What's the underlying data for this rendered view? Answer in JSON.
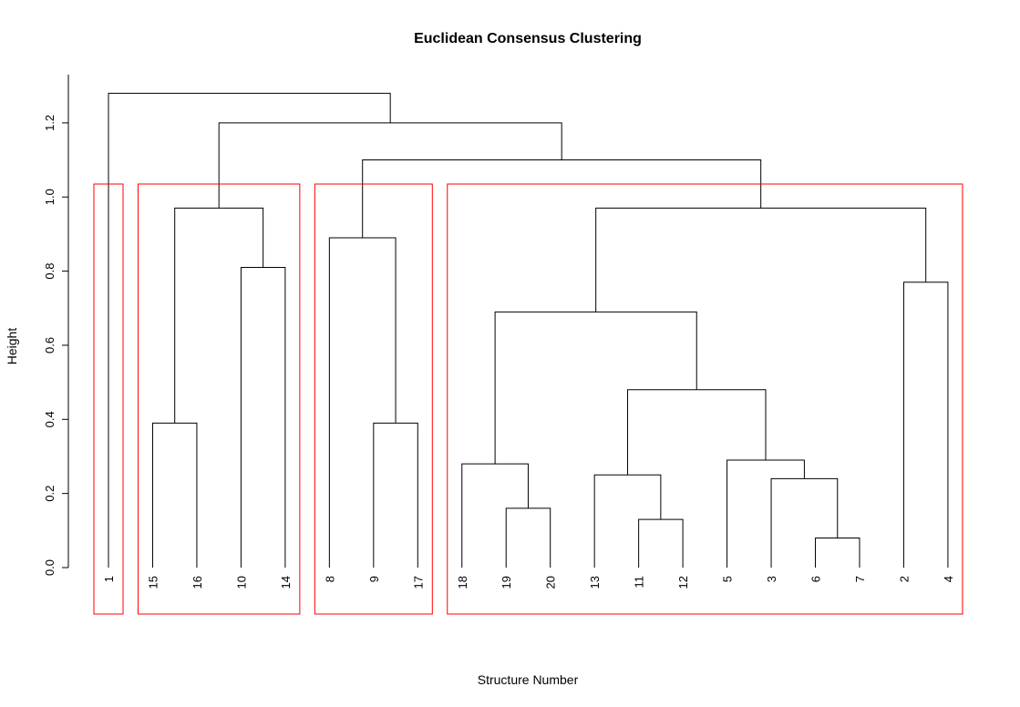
{
  "chart_data": {
    "type": "dendrogram",
    "title": "Euclidean Consensus Clustering",
    "x_label": "Structure Number",
    "y_label": "Height",
    "ylim": [
      0,
      1.33
    ],
    "yticks": [
      {
        "value": 0,
        "label": "0.0"
      },
      0.2,
      0.4,
      0.6,
      0.8,
      {
        "value": 1,
        "label": "1.0"
      },
      1.2
    ],
    "line_color": "#000000",
    "rect_clusters": 4,
    "rect_color": "#ff0000",
    "tree": {
      "height": 1.28,
      "children": [
        {
          "leaf": "1"
        },
        {
          "height": 1.2,
          "children": [
            {
              "height": 0.97,
              "children": [
                {
                  "height": 0.39,
                  "children": [
                    {
                      "leaf": "15"
                    },
                    {
                      "leaf": "16"
                    }
                  ]
                },
                {
                  "height": 0.81,
                  "children": [
                    {
                      "leaf": "10"
                    },
                    {
                      "leaf": "14"
                    }
                  ]
                }
              ]
            },
            {
              "height": 1.1,
              "children": [
                {
                  "height": 0.89,
                  "children": [
                    {
                      "leaf": "8"
                    },
                    {
                      "height": 0.39,
                      "children": [
                        {
                          "leaf": "9"
                        },
                        {
                          "leaf": "17"
                        }
                      ]
                    }
                  ]
                },
                {
                  "height": 0.97,
                  "children": [
                    {
                      "height": 0.69,
                      "children": [
                        {
                          "height": 0.28,
                          "children": [
                            {
                              "leaf": "18"
                            },
                            {
                              "height": 0.16,
                              "children": [
                                {
                                  "leaf": "19"
                                },
                                {
                                  "leaf": "20"
                                }
                              ]
                            }
                          ]
                        },
                        {
                          "height": 0.48,
                          "children": [
                            {
                              "height": 0.25,
                              "children": [
                                {
                                  "leaf": "13"
                                },
                                {
                                  "height": 0.13,
                                  "children": [
                                    {
                                      "leaf": "11"
                                    },
                                    {
                                      "leaf": "12"
                                    }
                                  ]
                                }
                              ]
                            },
                            {
                              "height": 0.29,
                              "children": [
                                {
                                  "leaf": "5"
                                },
                                {
                                  "height": 0.24,
                                  "children": [
                                    {
                                      "leaf": "3"
                                    },
                                    {
                                      "height": 0.08,
                                      "children": [
                                        {
                                          "leaf": "6"
                                        },
                                        {
                                          "leaf": "7"
                                        }
                                      ]
                                    }
                                  ]
                                }
                              ]
                            }
                          ]
                        }
                      ]
                    },
                    {
                      "height": 0.77,
                      "children": [
                        {
                          "leaf": "2"
                        },
                        {
                          "leaf": "4"
                        }
                      ]
                    }
                  ]
                }
              ]
            }
          ]
        }
      ]
    }
  }
}
